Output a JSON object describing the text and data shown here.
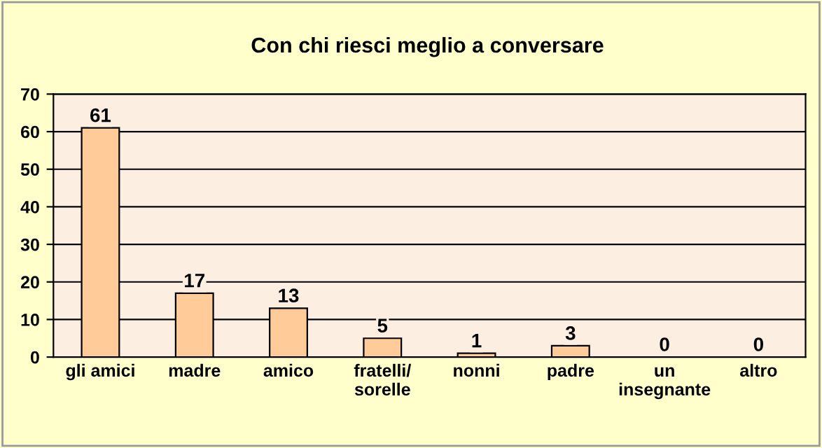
{
  "chart_data": {
    "type": "bar",
    "title": "Con chi riesci meglio a conversare",
    "categories": [
      "gli amici",
      "madre",
      "amico",
      "fratelli/\nsorelle",
      "nonni",
      "padre",
      "un\ninsegnante",
      "altro"
    ],
    "values": [
      61,
      17,
      13,
      5,
      1,
      3,
      0,
      0
    ],
    "color": "#ffcc99",
    "ylim": [
      0,
      70
    ],
    "yticks": [
      0,
      10,
      20,
      30,
      40,
      50,
      60,
      70
    ],
    "grid": "y",
    "data_labels": true,
    "legend": false
  }
}
